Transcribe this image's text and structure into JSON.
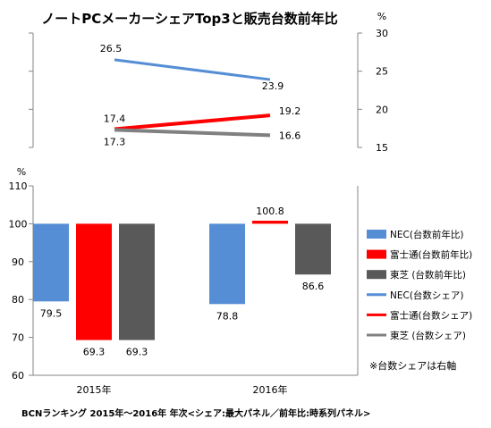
{
  "chart_data": {
    "type": "bar+line",
    "title": "ノートPCメーカーシェアTop3と販売台数前年比",
    "footnote": "BCNランキング 2015年～2016年 年次<シェア:最大パネル／前年比:時系列パネル>",
    "note": "※台数シェアは右軸",
    "categories": [
      "2015年",
      "2016年"
    ],
    "upper_panel": {
      "unit": "%",
      "ylim": [
        15,
        30
      ],
      "ticks": [
        "15",
        "20",
        "25",
        "30"
      ],
      "series": [
        {
          "name": "NEC(台数シェア)",
          "color": "#558ed5",
          "values": [
            26.5,
            23.9
          ],
          "labels": [
            "26.5",
            "23.9"
          ]
        },
        {
          "name": "富士通(台数シェア)",
          "color": "#ff0000",
          "values": [
            17.4,
            19.2
          ],
          "labels": [
            "17.4",
            "19.2"
          ]
        },
        {
          "name": "東芝(台数シェア)",
          "color": "#808080",
          "values": [
            17.3,
            16.6
          ],
          "labels": [
            "17.3",
            "16.6"
          ]
        }
      ]
    },
    "lower_panel": {
      "unit": "%",
      "ylim": [
        60,
        110
      ],
      "baseline": 100,
      "ticks": [
        "60",
        "70",
        "80",
        "90",
        "100",
        "110"
      ],
      "series": [
        {
          "name": "NEC(台数前年比)",
          "color": "#558ed5",
          "values": [
            79.5,
            78.8
          ],
          "labels": [
            "79.5",
            "78.8"
          ]
        },
        {
          "name": "富士通(台数前年比)",
          "color": "#ff0000",
          "values": [
            69.3,
            100.8
          ],
          "labels": [
            "69.3",
            "100.8"
          ]
        },
        {
          "name": "東芝(台数前年比)",
          "color": "#595959",
          "values": [
            69.3,
            86.6
          ],
          "labels": [
            "69.3",
            "86.6"
          ]
        }
      ]
    },
    "legend": [
      {
        "name": "NEC(台数前年比)",
        "color": "#558ed5",
        "kind": "bar"
      },
      {
        "name": "富士通(台数前年比)",
        "color": "#ff0000",
        "kind": "bar"
      },
      {
        "name": "東芝 (台数前年比)",
        "color": "#595959",
        "kind": "bar"
      },
      {
        "name": "NEC(台数シェア)",
        "color": "#558ed5",
        "kind": "line"
      },
      {
        "name": "富士通(台数シェア)",
        "color": "#ff0000",
        "kind": "line"
      },
      {
        "name": "東芝 (台数シェア)",
        "color": "#808080",
        "kind": "line"
      }
    ],
    "legend_position": "right"
  }
}
